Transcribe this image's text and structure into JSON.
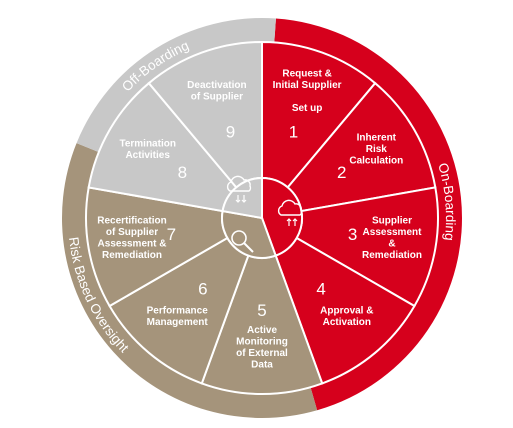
{
  "phases": [
    {
      "id": "onboarding",
      "label": "On-Boarding",
      "color": "#d6001c"
    },
    {
      "id": "offboarding",
      "label": "Off-Boarding",
      "color": "#c8c8c8"
    },
    {
      "id": "risk",
      "label": "Risk Based Oversight",
      "color": "#a5947b"
    }
  ],
  "segments": [
    {
      "number": "1",
      "lines": [
        "Request &",
        "Initial Supplier",
        "",
        "Set up"
      ],
      "phase": "onboarding"
    },
    {
      "number": "2",
      "lines": [
        "Inherent",
        "Risk",
        "Calculation"
      ],
      "phase": "onboarding"
    },
    {
      "number": "3",
      "lines": [
        "Supplier",
        "Assessment",
        "&",
        "Remediation"
      ],
      "phase": "onboarding"
    },
    {
      "number": "4",
      "lines": [
        "Approval &",
        "Activation"
      ],
      "phase": "onboarding"
    },
    {
      "number": "5",
      "lines": [
        "Active",
        "Monitoring",
        "of External",
        "Data"
      ],
      "phase": "risk"
    },
    {
      "number": "6",
      "lines": [
        "Performance",
        "Management"
      ],
      "phase": "risk"
    },
    {
      "number": "7",
      "lines": [
        "Recertification",
        "of Supplier",
        "Assessment &",
        "Remediation"
      ],
      "phase": "risk"
    },
    {
      "number": "8",
      "lines": [
        "Termination",
        "Activities"
      ],
      "phase": "offboarding"
    },
    {
      "number": "9",
      "lines": [
        "Deactivation",
        "of Supplier"
      ],
      "phase": "offboarding"
    }
  ],
  "center_icons": [
    {
      "name": "cloud-upload-icon",
      "phase": "onboarding"
    },
    {
      "name": "cloud-download-icon",
      "phase": "offboarding"
    },
    {
      "name": "magnifier-icon",
      "phase": "risk"
    }
  ]
}
